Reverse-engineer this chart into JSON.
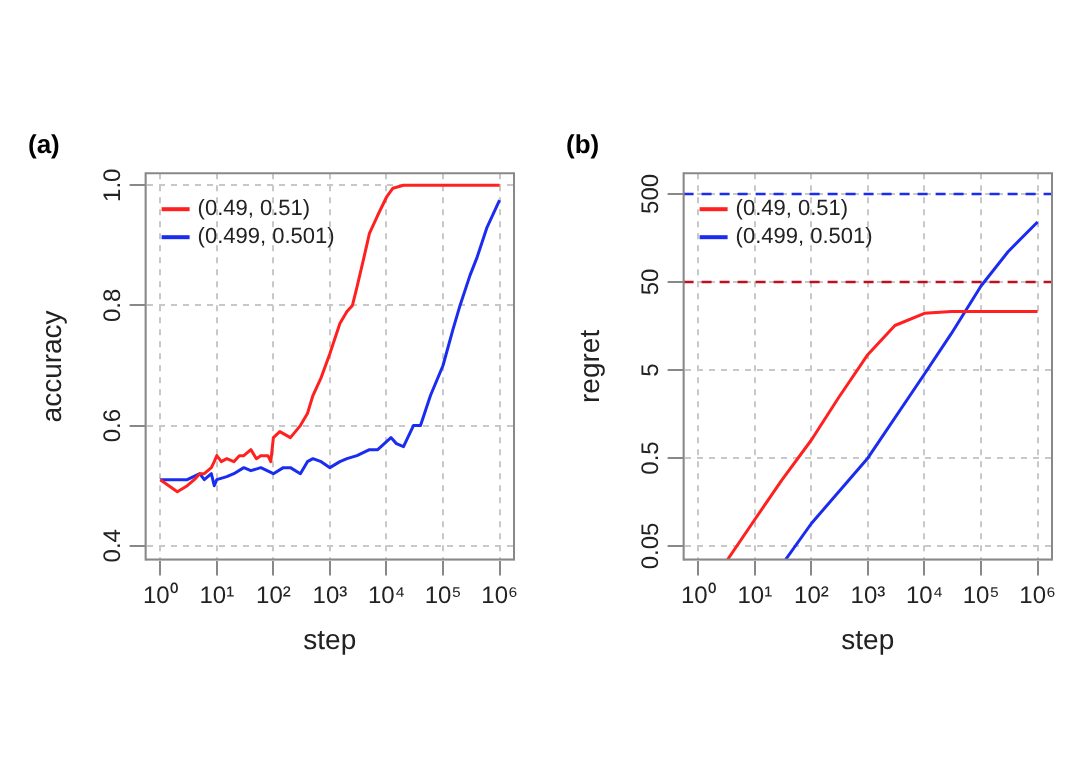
{
  "chart_data": [
    {
      "type": "line",
      "title": "(a)",
      "xlabel": "step",
      "ylabel": "accuracy",
      "log": "x",
      "grid": true,
      "legend": "top left",
      "xlim": [
        0.55,
        1800000
      ],
      "xticks": [
        {
          "value": 1,
          "label": "10⁰"
        },
        {
          "value": 10,
          "label": "10¹"
        },
        {
          "value": 100,
          "label": "10²"
        },
        {
          "value": 1000,
          "label": "10³"
        },
        {
          "value": 10000,
          "label": "10⁴"
        },
        {
          "value": 100000,
          "label": "10⁵"
        },
        {
          "value": 1000000,
          "label": "10⁶"
        }
      ],
      "ylim": [
        0.377,
        1.02
      ],
      "yticks": [
        0.4,
        0.6,
        0.8,
        {
          "value": 1,
          "label": "1.0"
        }
      ],
      "series": [
        {
          "name": "(0.49, 0.51)",
          "color": "#ff2020",
          "x": [
            1,
            2,
            3,
            4,
            5,
            6,
            8,
            9,
            10,
            12,
            15,
            20,
            25,
            30,
            40,
            50,
            60,
            80,
            90,
            100,
            130,
            200,
            300,
            400,
            500,
            700,
            1000,
            1500,
            2000,
            2500,
            3000,
            4000,
            5000,
            7000,
            10000,
            13000,
            20000,
            100000,
            1000000
          ],
          "values": [
            0.51,
            0.49,
            0.5,
            0.51,
            0.52,
            0.52,
            0.53,
            0.54,
            0.55,
            0.54,
            0.545,
            0.54,
            0.55,
            0.55,
            0.56,
            0.545,
            0.55,
            0.55,
            0.54,
            0.58,
            0.59,
            0.58,
            0.6,
            0.62,
            0.65,
            0.68,
            0.72,
            0.77,
            0.79,
            0.8,
            0.83,
            0.88,
            0.92,
            0.95,
            0.98,
            0.995,
            1.0,
            1.0,
            1.0
          ]
        },
        {
          "name": "(0.499, 0.501)",
          "color": "#1a2cf0",
          "x": [
            1,
            2,
            3,
            5,
            6,
            8,
            9,
            10,
            15,
            20,
            30,
            40,
            60,
            100,
            150,
            200,
            300,
            400,
            500,
            700,
            1000,
            1500,
            2000,
            3000,
            5000,
            7000,
            12000,
            15000,
            20000,
            30000,
            40000,
            60000,
            100000,
            150000,
            200000,
            300000,
            400000,
            600000,
            1000000
          ],
          "values": [
            0.51,
            0.51,
            0.51,
            0.52,
            0.51,
            0.52,
            0.5,
            0.51,
            0.515,
            0.52,
            0.53,
            0.525,
            0.53,
            0.52,
            0.53,
            0.53,
            0.52,
            0.54,
            0.545,
            0.54,
            0.53,
            0.54,
            0.545,
            0.55,
            0.56,
            0.56,
            0.58,
            0.57,
            0.565,
            0.6,
            0.6,
            0.65,
            0.7,
            0.76,
            0.8,
            0.85,
            0.88,
            0.93,
            0.975
          ]
        }
      ]
    },
    {
      "type": "line",
      "title": "(b)",
      "xlabel": "step",
      "ylabel": "regret",
      "log": "xy",
      "grid": true,
      "legend": "top left",
      "xlim": [
        0.55,
        1800000
      ],
      "xticks": [
        {
          "value": 1,
          "label": "10⁰"
        },
        {
          "value": 10,
          "label": "10¹"
        },
        {
          "value": 100,
          "label": "10²"
        },
        {
          "value": 1000,
          "label": "10³"
        },
        {
          "value": 10000,
          "label": "10⁴"
        },
        {
          "value": 100000,
          "label": "10⁵"
        },
        {
          "value": 1000000,
          "label": "10⁶"
        }
      ],
      "ylim": [
        0.035,
        860
      ],
      "yticks": [
        0.05,
        0.5,
        5,
        50,
        500
      ],
      "ref_lines": [
        {
          "axis": "y",
          "value": 500,
          "color": "#1a2cf0",
          "line_style": "dashed"
        },
        {
          "axis": "y",
          "value": 50,
          "color": "#c01020",
          "line_style": "dashed"
        }
      ],
      "series": [
        {
          "name": "(0.49, 0.51)",
          "color": "#ff2020",
          "x": [
            3.3,
            10,
            30,
            100,
            300,
            1000,
            3000,
            10000,
            30000,
            100000,
            1000000
          ],
          "values": [
            0.035,
            0.1,
            0.28,
            0.8,
            2.4,
            7.5,
            16,
            22,
            23,
            23,
            23
          ]
        },
        {
          "name": "(0.499, 0.501)",
          "color": "#1a2cf0",
          "x": [
            35,
            100,
            1000,
            10000,
            30000,
            100000,
            300000,
            1000000
          ],
          "values": [
            0.035,
            0.09,
            0.5,
            4.5,
            13,
            45,
            110,
            240
          ]
        }
      ]
    }
  ]
}
